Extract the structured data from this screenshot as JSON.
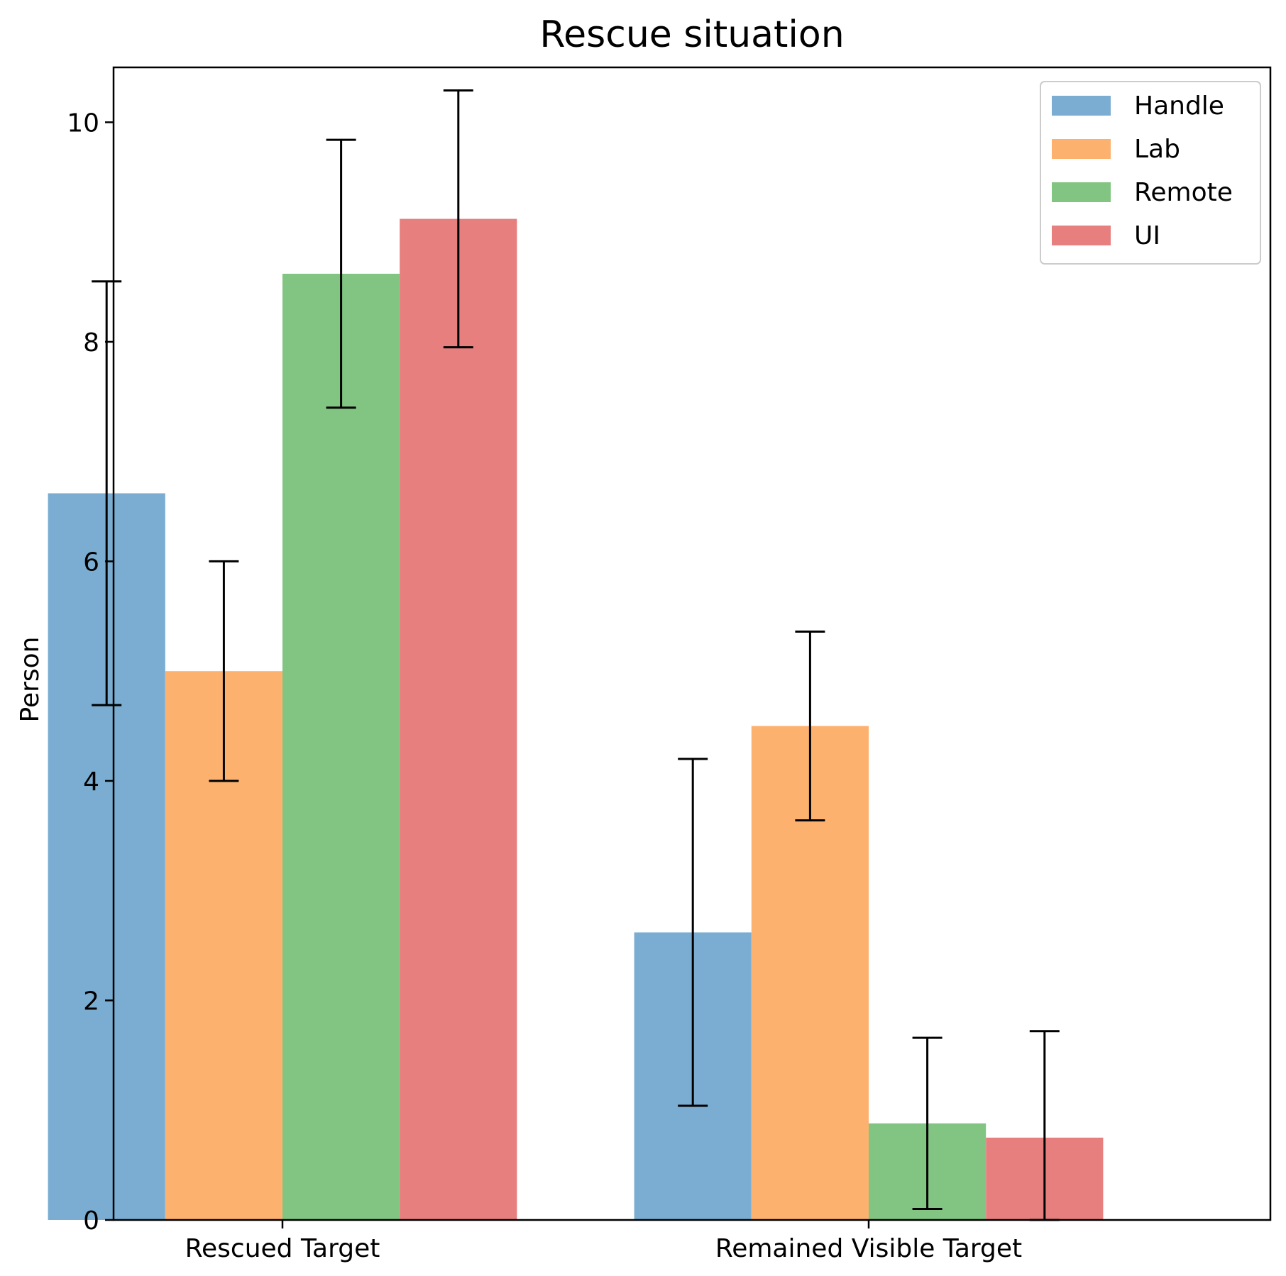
{
  "chart_data": {
    "type": "bar",
    "title": "Rescue situation",
    "xlabel": "",
    "ylabel": "Person",
    "ylim": [
      0,
      10.5
    ],
    "yticks": [
      0,
      2,
      4,
      6,
      8,
      10
    ],
    "categories": [
      "Rescued Target",
      "Remained Visible Target"
    ],
    "legend_position": "top-right",
    "grid": false,
    "series": [
      {
        "name": "Handle",
        "color": "#7aadd1",
        "values": [
          6.62,
          2.62
        ],
        "errors": [
          1.93,
          1.58
        ]
      },
      {
        "name": "Lab",
        "color": "#fdb16e",
        "values": [
          5.0,
          4.5
        ],
        "errors": [
          1.0,
          0.86
        ]
      },
      {
        "name": "Remote",
        "color": "#82c582",
        "values": [
          8.62,
          0.88
        ],
        "errors": [
          1.22,
          0.78
        ]
      },
      {
        "name": "UI",
        "color": "#e77f7f",
        "values": [
          9.12,
          0.75
        ],
        "errors": [
          1.17,
          0.97
        ]
      }
    ]
  }
}
